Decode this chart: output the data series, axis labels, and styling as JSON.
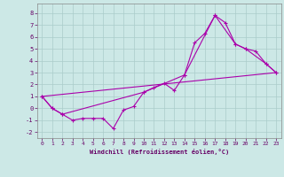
{
  "xlabel": "Windchill (Refroidissement éolien,°C)",
  "xlim": [
    -0.5,
    23.5
  ],
  "ylim": [
    -2.5,
    8.8
  ],
  "xticks": [
    0,
    1,
    2,
    3,
    4,
    5,
    6,
    7,
    8,
    9,
    10,
    11,
    12,
    13,
    14,
    15,
    16,
    17,
    18,
    19,
    20,
    21,
    22,
    23
  ],
  "yticks": [
    -2,
    -1,
    0,
    1,
    2,
    3,
    4,
    5,
    6,
    7,
    8
  ],
  "bg_color": "#cce8e6",
  "grid_color": "#aaccca",
  "line_color": "#aa00aa",
  "line1_x": [
    0,
    1,
    2,
    3,
    4,
    5,
    6,
    7,
    8,
    9,
    10,
    11,
    12,
    13,
    14,
    15,
    16,
    17,
    18,
    19,
    20,
    21,
    22,
    23
  ],
  "line1_y": [
    1.0,
    0.0,
    -0.5,
    -1.0,
    -0.85,
    -0.85,
    -0.85,
    -1.7,
    -0.15,
    0.15,
    1.35,
    1.75,
    2.1,
    1.5,
    2.8,
    5.5,
    6.3,
    7.8,
    7.2,
    5.4,
    5.0,
    4.8,
    3.75,
    3.0
  ],
  "line2_x": [
    0,
    1,
    2,
    10,
    14,
    17,
    19,
    20,
    22,
    23
  ],
  "line2_y": [
    1.0,
    0.0,
    -0.5,
    1.35,
    2.8,
    7.8,
    5.4,
    5.0,
    3.75,
    3.0
  ],
  "line3_x": [
    0,
    23
  ],
  "line3_y": [
    1.0,
    3.0
  ]
}
